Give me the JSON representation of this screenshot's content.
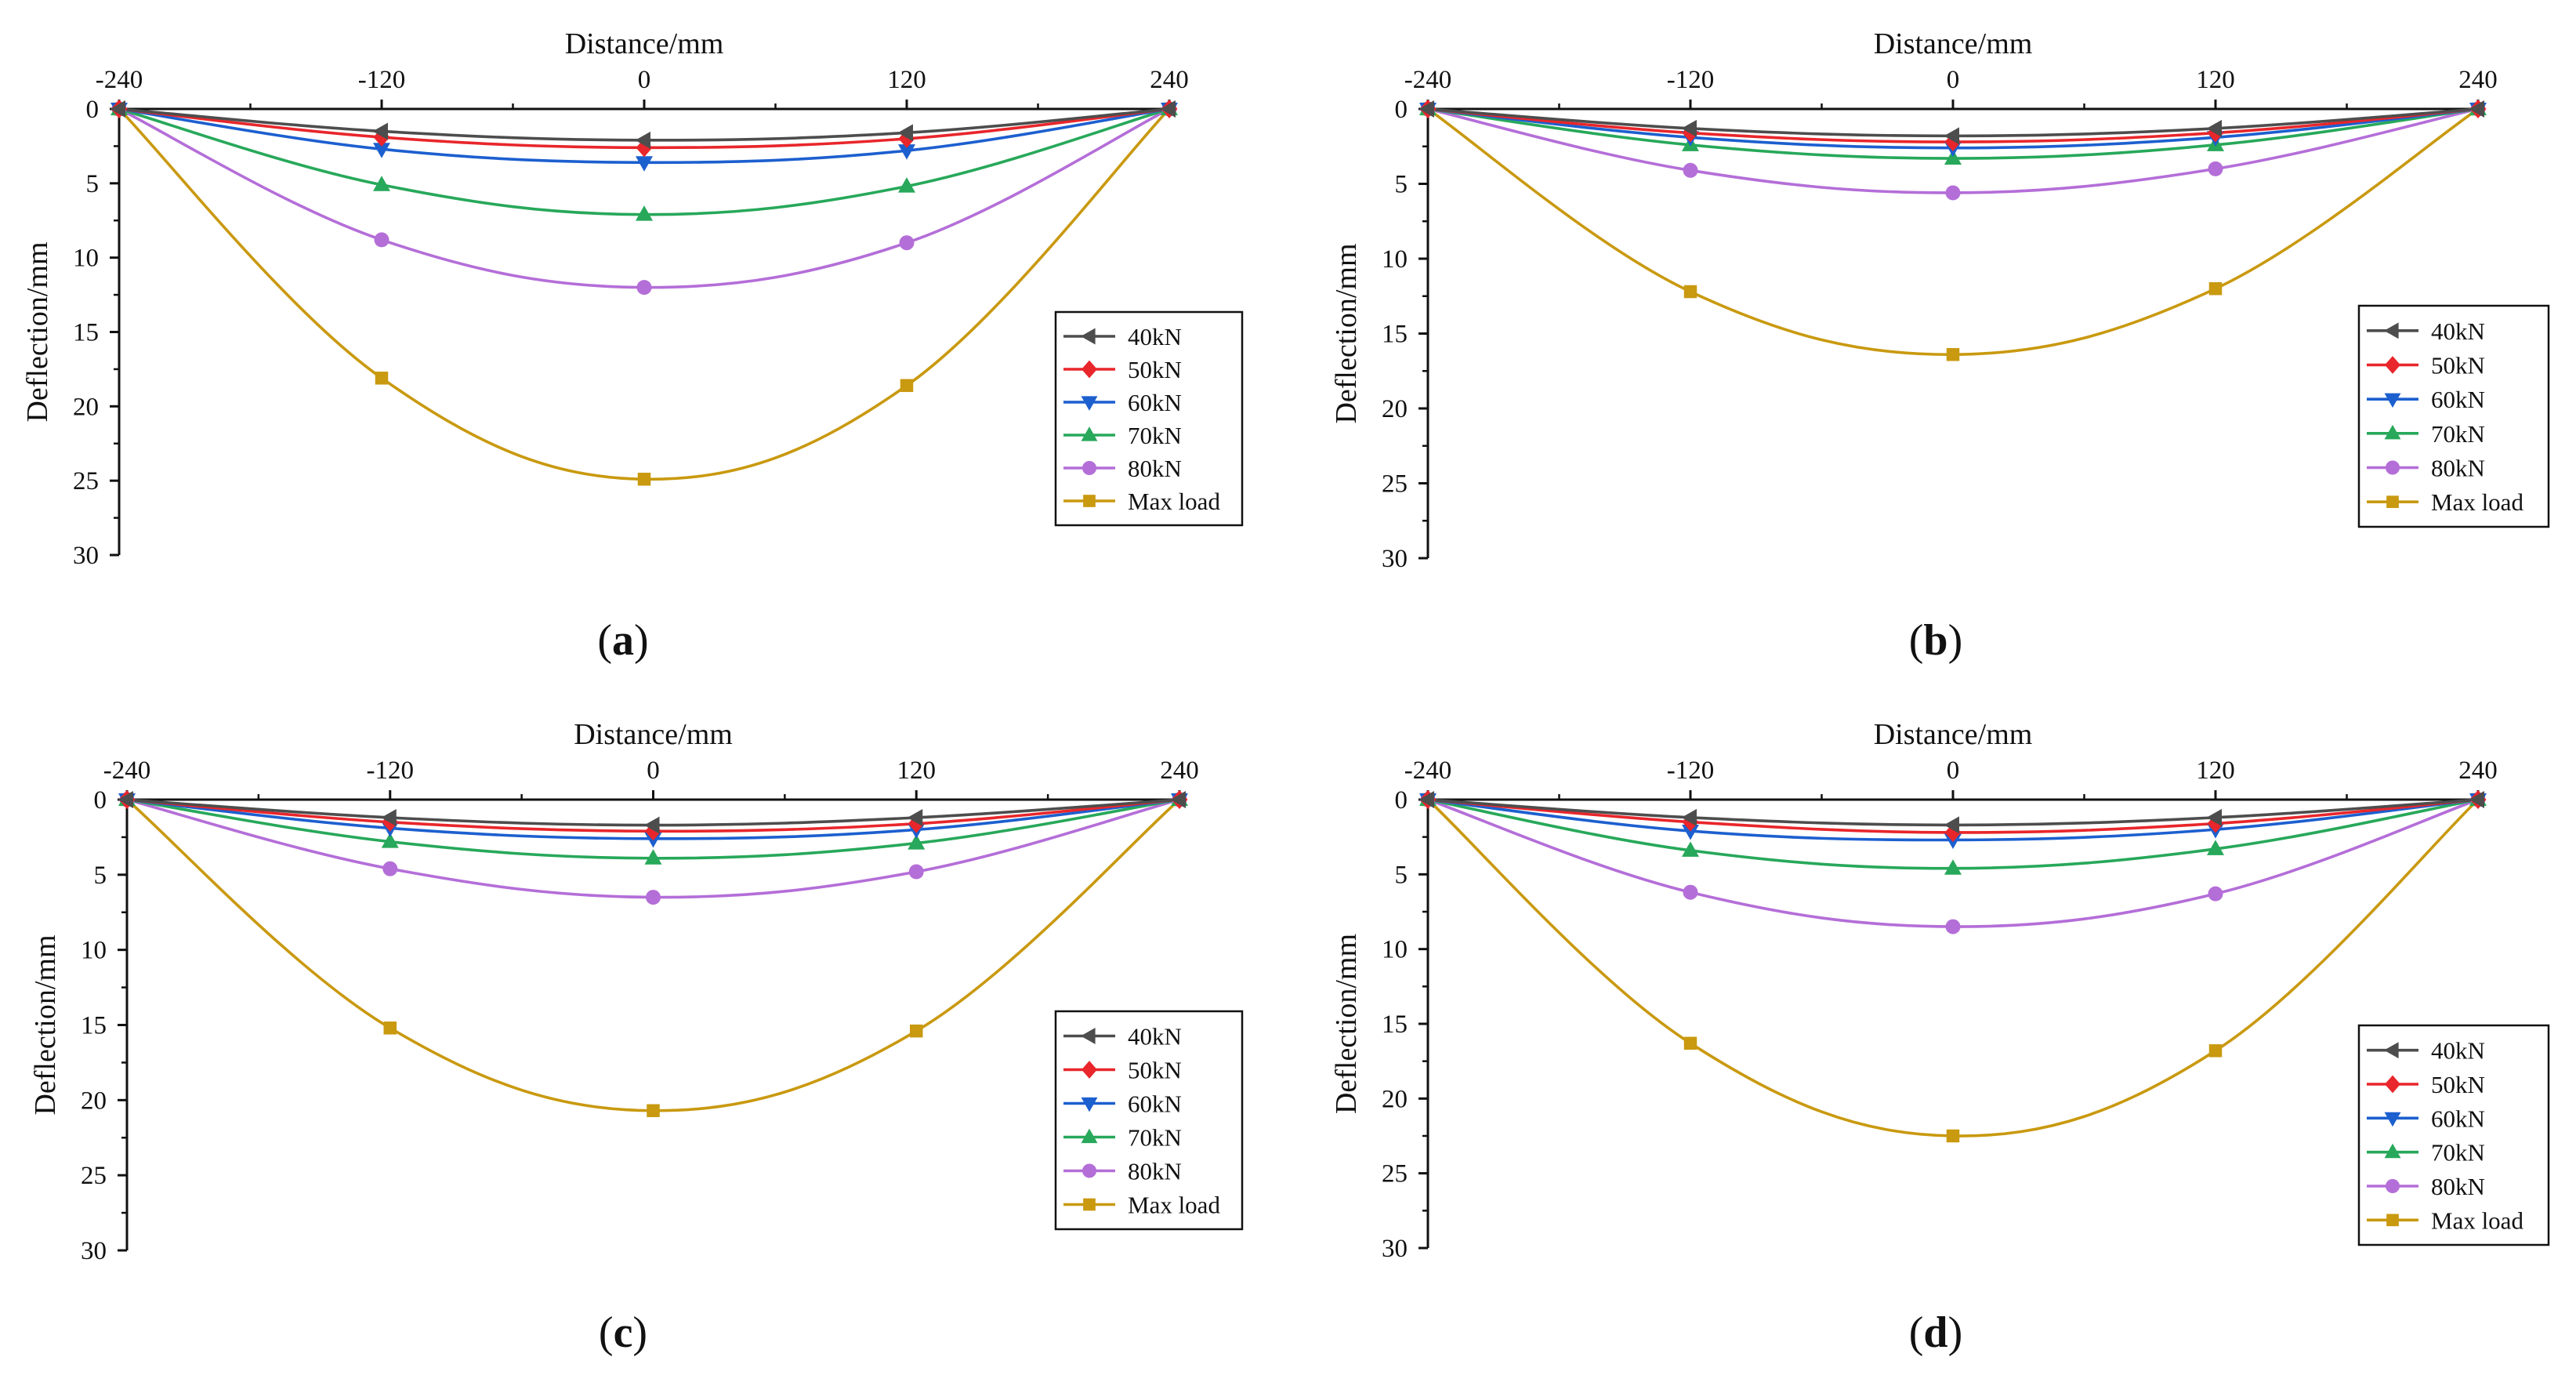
{
  "colors": {
    "40kN": "#4d4d4d",
    "50kN": "#e8262b",
    "60kN": "#1c5fcf",
    "70kN": "#27a85a",
    "80kN": "#b46ed8",
    "Max load": "#c9990f",
    "axis": "#111111"
  },
  "chart_data": [
    {
      "type": "line",
      "panel": "a",
      "panel_label": {
        "open": "(",
        "letter": "a",
        "close": ")"
      },
      "xlabel": "Distance/mm",
      "ylabel": "Deflection/mm",
      "x_ticks": [
        "-240",
        "-120",
        "0",
        "120",
        "240"
      ],
      "y_ticks": [
        "0",
        "5",
        "10",
        "15",
        "20",
        "25",
        "30"
      ],
      "xlim": [
        -240,
        240
      ],
      "ylim": [
        0,
        30
      ],
      "y_inverted": true,
      "x_axis_position": "top",
      "legend_position": "right",
      "x": [
        -240,
        -120,
        0,
        120,
        240
      ],
      "series": [
        {
          "name": "40kN",
          "marker": "triangle-left",
          "values": [
            0,
            1.5,
            2.1,
            1.6,
            0
          ]
        },
        {
          "name": "50kN",
          "marker": "diamond",
          "values": [
            0,
            1.9,
            2.6,
            2.0,
            0
          ]
        },
        {
          "name": "60kN",
          "marker": "triangle-down",
          "values": [
            0,
            2.7,
            3.6,
            2.8,
            0
          ]
        },
        {
          "name": "70kN",
          "marker": "triangle-up",
          "values": [
            0,
            5.1,
            7.1,
            5.2,
            0
          ]
        },
        {
          "name": "80kN",
          "marker": "circle",
          "values": [
            0,
            8.8,
            12.0,
            9.0,
            0
          ]
        },
        {
          "name": "Max load",
          "marker": "square",
          "values": [
            0,
            18.1,
            24.9,
            18.6,
            0
          ]
        }
      ]
    },
    {
      "type": "line",
      "panel": "b",
      "panel_label": {
        "open": "(",
        "letter": "b",
        "close": ")"
      },
      "xlabel": "Distance/mm",
      "ylabel": "Deflection/mm",
      "x_ticks": [
        "-240",
        "-120",
        "0",
        "120",
        "240"
      ],
      "y_ticks": [
        "0",
        "5",
        "10",
        "15",
        "20",
        "25",
        "30"
      ],
      "xlim": [
        -240,
        240
      ],
      "ylim": [
        0,
        30
      ],
      "y_inverted": true,
      "x_axis_position": "top",
      "legend_position": "right",
      "x": [
        -240,
        -120,
        0,
        120,
        240
      ],
      "series": [
        {
          "name": "40kN",
          "marker": "triangle-left",
          "values": [
            0,
            1.3,
            1.8,
            1.3,
            0
          ]
        },
        {
          "name": "50kN",
          "marker": "diamond",
          "values": [
            0,
            1.6,
            2.2,
            1.6,
            0
          ]
        },
        {
          "name": "60kN",
          "marker": "triangle-down",
          "values": [
            0,
            1.9,
            2.6,
            1.9,
            0
          ]
        },
        {
          "name": "70kN",
          "marker": "triangle-up",
          "values": [
            0,
            2.4,
            3.3,
            2.4,
            0
          ]
        },
        {
          "name": "80kN",
          "marker": "circle",
          "values": [
            0,
            4.1,
            5.6,
            4.0,
            0
          ]
        },
        {
          "name": "Max load",
          "marker": "square",
          "values": [
            0,
            12.2,
            16.4,
            12.0,
            0
          ]
        }
      ]
    },
    {
      "type": "line",
      "panel": "c",
      "panel_label": {
        "open": "(",
        "letter": "c",
        "close": ")"
      },
      "xlabel": "Distance/mm",
      "ylabel": "Deflection/mm",
      "x_ticks": [
        "-240",
        "-120",
        "0",
        "120",
        "240"
      ],
      "y_ticks": [
        "0",
        "5",
        "10",
        "15",
        "20",
        "25",
        "30"
      ],
      "xlim": [
        -240,
        240
      ],
      "ylim": [
        0,
        30
      ],
      "y_inverted": true,
      "x_axis_position": "top",
      "legend_position": "right",
      "x": [
        -240,
        -120,
        0,
        120,
        240
      ],
      "series": [
        {
          "name": "40kN",
          "marker": "triangle-left",
          "values": [
            0,
            1.2,
            1.7,
            1.2,
            0
          ]
        },
        {
          "name": "50kN",
          "marker": "diamond",
          "values": [
            0,
            1.5,
            2.1,
            1.6,
            0
          ]
        },
        {
          "name": "60kN",
          "marker": "triangle-down",
          "values": [
            0,
            1.9,
            2.6,
            2.0,
            0
          ]
        },
        {
          "name": "70kN",
          "marker": "triangle-up",
          "values": [
            0,
            2.8,
            3.9,
            2.9,
            0
          ]
        },
        {
          "name": "80kN",
          "marker": "circle",
          "values": [
            0,
            4.6,
            6.5,
            4.8,
            0
          ]
        },
        {
          "name": "Max load",
          "marker": "square",
          "values": [
            0,
            15.2,
            20.7,
            15.4,
            0
          ]
        }
      ]
    },
    {
      "type": "line",
      "panel": "d",
      "panel_label": {
        "open": "(",
        "letter": "d",
        "close": ")"
      },
      "xlabel": "Distance/mm",
      "ylabel": "Deflection/mm",
      "x_ticks": [
        "-240",
        "-120",
        "0",
        "120",
        "240"
      ],
      "y_ticks": [
        "0",
        "5",
        "10",
        "15",
        "20",
        "25",
        "30"
      ],
      "xlim": [
        -240,
        240
      ],
      "ylim": [
        0,
        30
      ],
      "y_inverted": true,
      "x_axis_position": "top",
      "legend_position": "right",
      "x": [
        -240,
        -120,
        0,
        120,
        240
      ],
      "series": [
        {
          "name": "40kN",
          "marker": "triangle-left",
          "values": [
            0,
            1.2,
            1.7,
            1.2,
            0
          ]
        },
        {
          "name": "50kN",
          "marker": "diamond",
          "values": [
            0,
            1.5,
            2.2,
            1.6,
            0
          ]
        },
        {
          "name": "60kN",
          "marker": "triangle-down",
          "values": [
            0,
            2.1,
            2.7,
            2.0,
            0
          ]
        },
        {
          "name": "70kN",
          "marker": "triangle-up",
          "values": [
            0,
            3.4,
            4.6,
            3.3,
            0
          ]
        },
        {
          "name": "80kN",
          "marker": "circle",
          "values": [
            0,
            6.2,
            8.5,
            6.3,
            0
          ]
        },
        {
          "name": "Max load",
          "marker": "square",
          "values": [
            0,
            16.3,
            22.5,
            16.8,
            0
          ]
        }
      ]
    }
  ]
}
